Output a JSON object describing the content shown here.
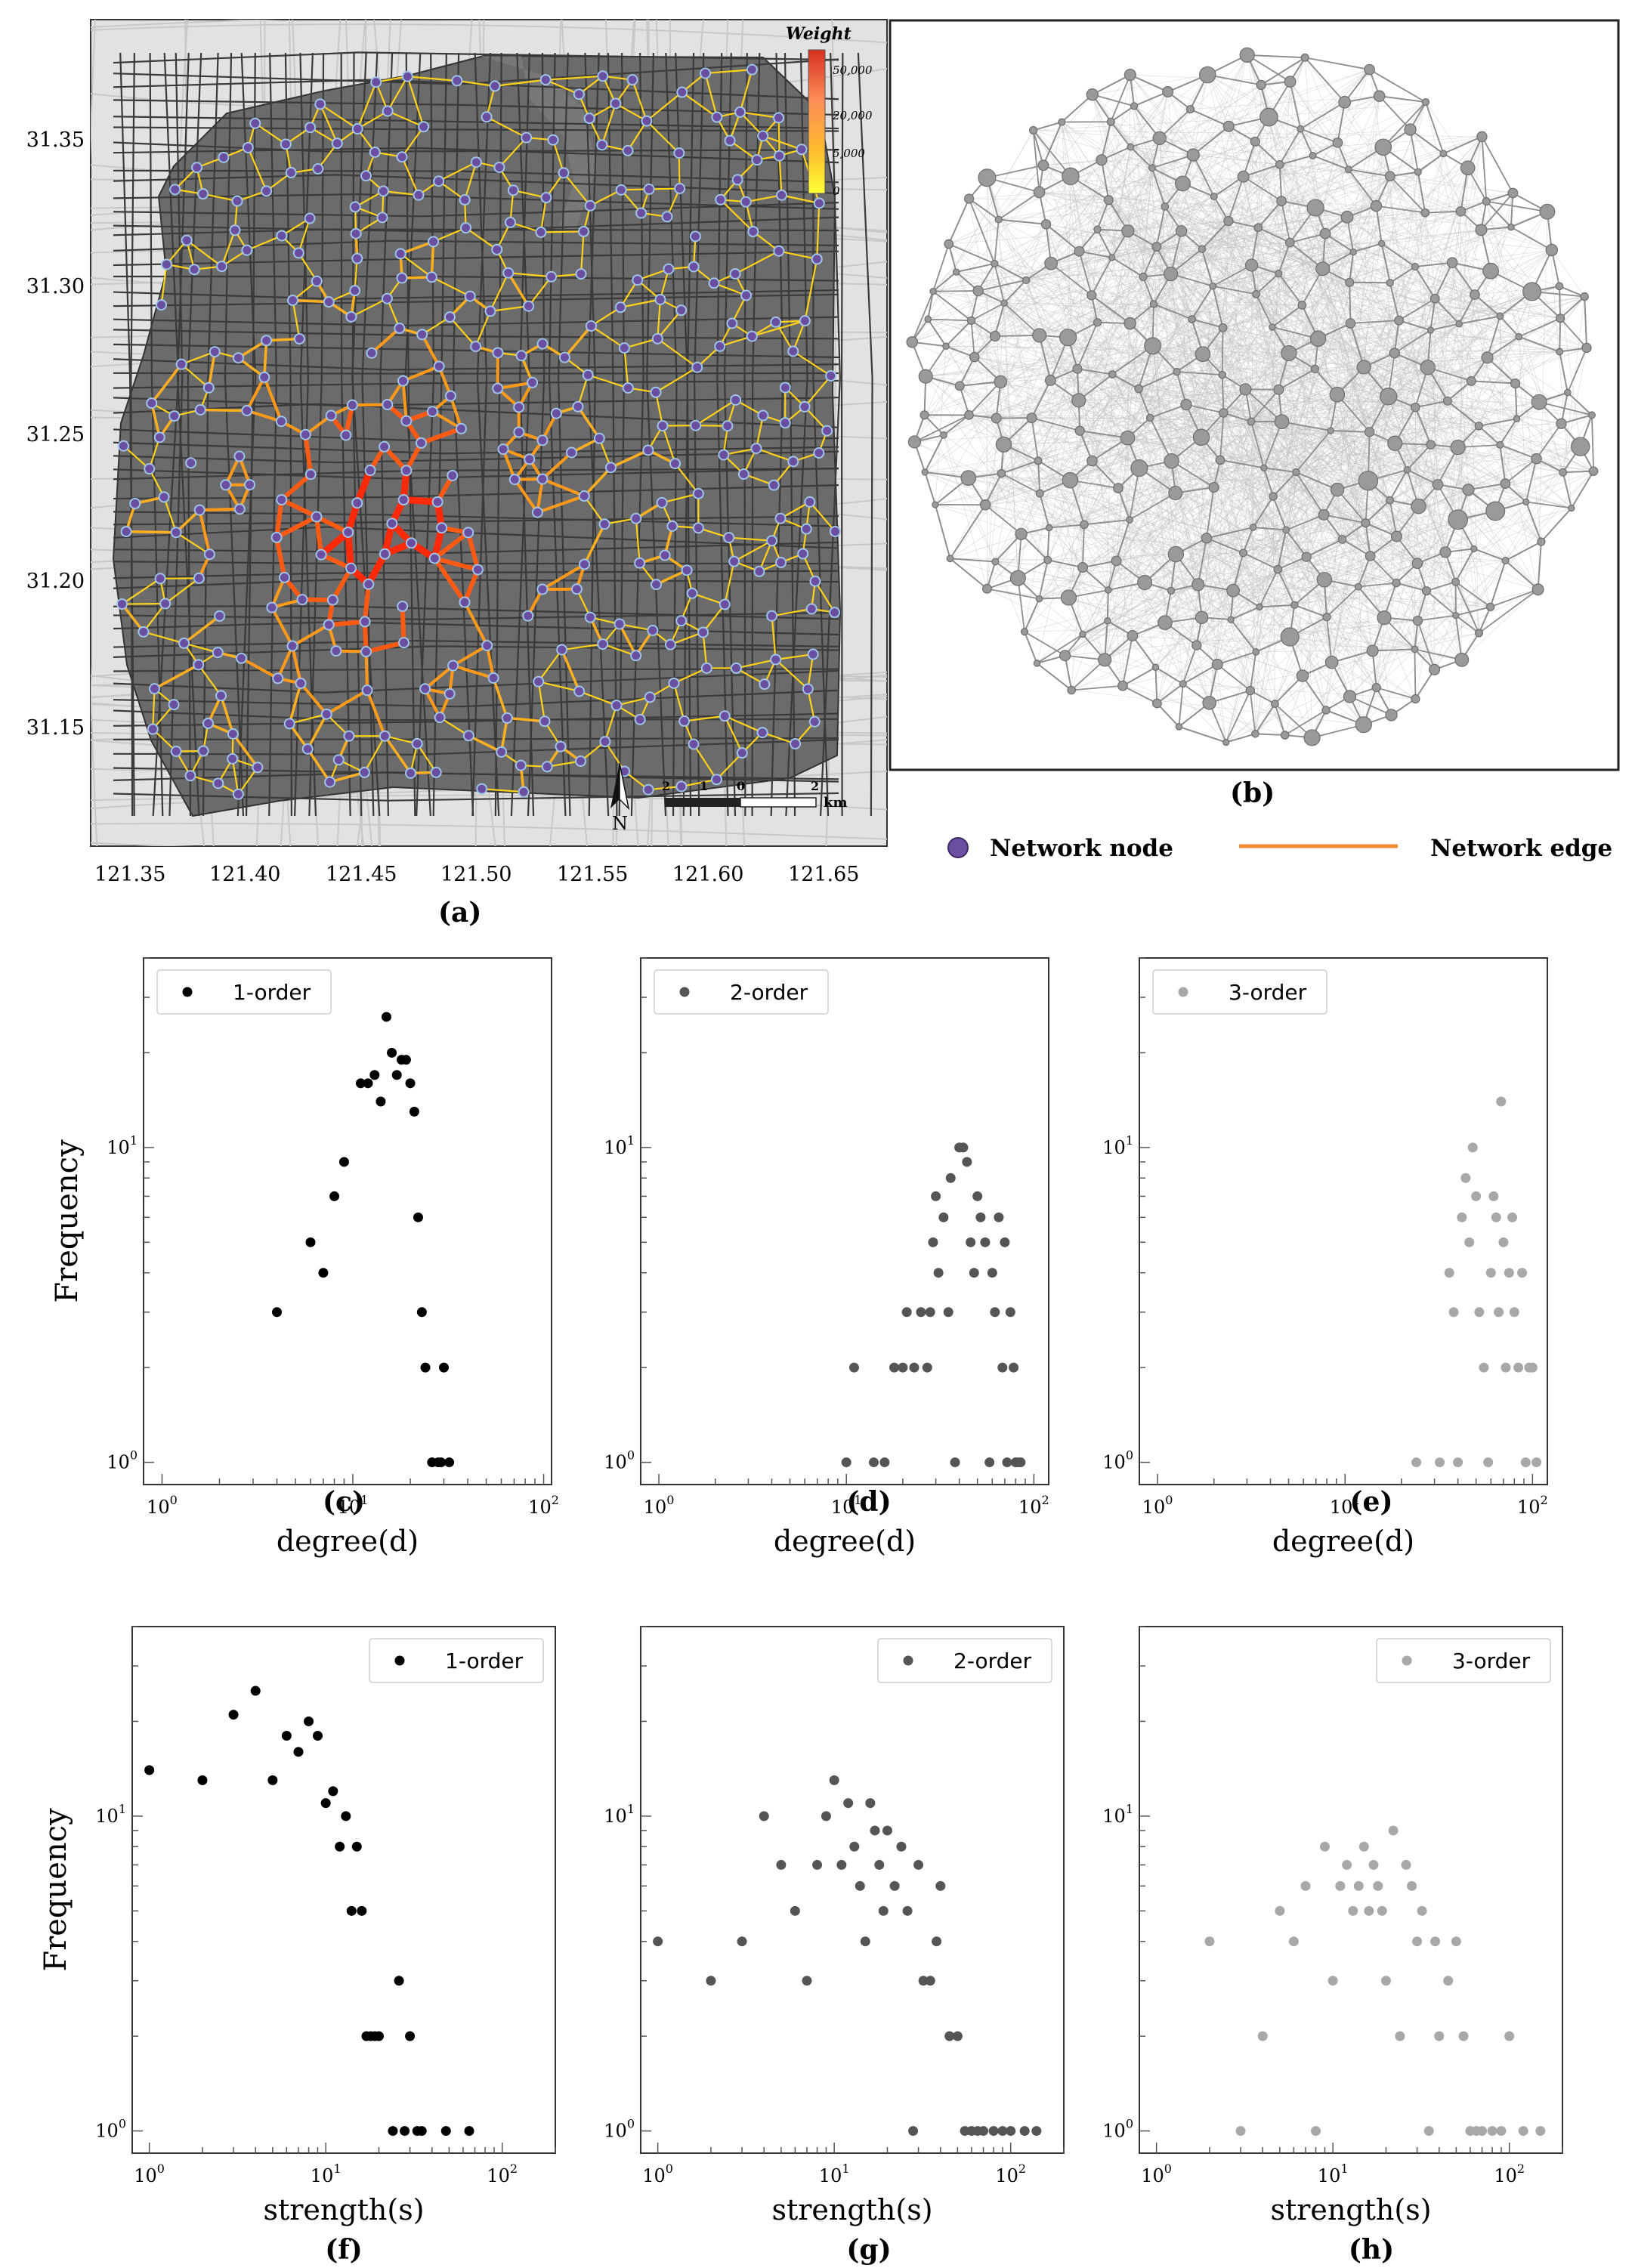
{
  "panels": {
    "a": {
      "label": "(a)",
      "x_ticks": [
        "121.35",
        "121.40",
        "121.45",
        "121.50",
        "121.55",
        "121.60",
        "121.65"
      ],
      "y_ticks": [
        "31.35",
        "31.30",
        "31.25",
        "31.20",
        "31.15"
      ],
      "colorbar": {
        "title": "Weight",
        "ticks": [
          "50,000",
          "20,000",
          "5,000",
          "0"
        ],
        "colors": [
          "#d7301f",
          "#fc8d59",
          "#fdbb2d",
          "#ffff33"
        ]
      },
      "north": "N",
      "scalebar": {
        "ticks": [
          "2",
          "1",
          "0",
          "2"
        ],
        "unit": "km"
      }
    },
    "b": {
      "label": "(b)"
    },
    "legend": {
      "node_label": "Network node",
      "edge_label": "Network edge",
      "node_color": "#6a4ea0",
      "edge_color": "#f28a30"
    }
  },
  "chart_data": [
    {
      "id": "c",
      "label": "(c)",
      "type": "scatter",
      "xscale": "log",
      "yscale": "log",
      "xlabel": "degree(d)",
      "ylabel": "Frequency",
      "legend": "1-order",
      "legend_loc": "top-left",
      "color": "#000000",
      "xlim": [
        0.8,
        110
      ],
      "ylim": [
        0.85,
        40
      ],
      "x_ticks": [
        "10^0",
        "10^1",
        "10^2"
      ],
      "y_ticks": [
        "10^0",
        "10^1"
      ],
      "x": [
        4,
        6,
        7,
        8,
        9,
        11,
        12,
        13,
        14,
        15,
        16,
        17,
        18,
        19,
        20,
        21,
        22,
        23,
        24,
        26,
        28,
        29,
        30,
        32
      ],
      "y": [
        3,
        5,
        4,
        7,
        9,
        16,
        16,
        17,
        14,
        26,
        20,
        17,
        19,
        19,
        16,
        13,
        6,
        3,
        2,
        1,
        1,
        1,
        2,
        1
      ]
    },
    {
      "id": "d",
      "label": "(d)",
      "type": "scatter",
      "xscale": "log",
      "yscale": "log",
      "xlabel": "degree(d)",
      "ylabel": "",
      "legend": "2-order",
      "legend_loc": "top-left",
      "color": "#555555",
      "xlim": [
        0.8,
        120
      ],
      "ylim": [
        0.85,
        40
      ],
      "x_ticks": [
        "10^0",
        "10^1",
        "10^2"
      ],
      "y_ticks": [
        "10^0",
        "10^1"
      ],
      "x": [
        10,
        11,
        14,
        16,
        18,
        20,
        21,
        23,
        25,
        27,
        28,
        29,
        30,
        31,
        33,
        35,
        36,
        38,
        40,
        42,
        44,
        46,
        48,
        50,
        52,
        55,
        58,
        60,
        62,
        65,
        68,
        70,
        72,
        75,
        78,
        80,
        82,
        85
      ],
      "y": [
        1,
        2,
        1,
        1,
        2,
        2,
        3,
        2,
        3,
        2,
        3,
        5,
        7,
        4,
        6,
        3,
        8,
        1,
        10,
        10,
        9,
        5,
        4,
        7,
        6,
        5,
        1,
        4,
        3,
        6,
        2,
        5,
        1,
        3,
        2,
        1,
        1,
        1
      ]
    },
    {
      "id": "e",
      "label": "(e)",
      "type": "scatter",
      "xscale": "log",
      "yscale": "log",
      "xlabel": "degree(d)",
      "ylabel": "",
      "legend": "3-order",
      "legend_loc": "top-left",
      "color": "#a8a8a8",
      "xlim": [
        0.8,
        120
      ],
      "ylim": [
        0.85,
        40
      ],
      "x_ticks": [
        "10^0",
        "10^1",
        "10^2"
      ],
      "y_ticks": [
        "10^0",
        "10^1"
      ],
      "x": [
        24,
        32,
        36,
        38,
        40,
        42,
        44,
        46,
        48,
        50,
        52,
        55,
        58,
        60,
        62,
        64,
        66,
        68,
        70,
        72,
        75,
        78,
        80,
        84,
        88,
        92,
        96,
        100,
        105
      ],
      "y": [
        1,
        1,
        4,
        3,
        1,
        6,
        8,
        5,
        10,
        7,
        3,
        2,
        1,
        4,
        7,
        6,
        3,
        14,
        5,
        2,
        4,
        6,
        3,
        2,
        4,
        1,
        2,
        2,
        1
      ]
    },
    {
      "id": "f",
      "label": "(f)",
      "type": "scatter",
      "xscale": "log",
      "yscale": "log",
      "xlabel": "strength(s)",
      "ylabel": "Frequency",
      "legend": "1-order",
      "legend_loc": "top-right",
      "color": "#000000",
      "xlim": [
        0.8,
        200
      ],
      "ylim": [
        0.85,
        40
      ],
      "x_ticks": [
        "10^0",
        "10^1",
        "10^2"
      ],
      "y_ticks": [
        "10^0",
        "10^1"
      ],
      "x": [
        1,
        2,
        3,
        4,
        5,
        6,
        7,
        8,
        9,
        10,
        11,
        12,
        13,
        14,
        15,
        16,
        17,
        18,
        19,
        20,
        24,
        26,
        28,
        30,
        33,
        35,
        48,
        65
      ],
      "y": [
        14,
        13,
        21,
        25,
        13,
        18,
        16,
        20,
        18,
        11,
        12,
        8,
        10,
        5,
        8,
        5,
        2,
        2,
        2,
        2,
        1,
        3,
        1,
        2,
        1,
        1,
        1,
        1
      ]
    },
    {
      "id": "g",
      "label": "(g)",
      "type": "scatter",
      "xscale": "log",
      "yscale": "log",
      "xlabel": "strength(s)",
      "ylabel": "",
      "legend": "2-order",
      "legend_loc": "top-right",
      "color": "#555555",
      "xlim": [
        0.8,
        200
      ],
      "ylim": [
        0.85,
        40
      ],
      "x_ticks": [
        "10^0",
        "10^1",
        "10^2"
      ],
      "y_ticks": [
        "10^0",
        "10^1"
      ],
      "x": [
        1,
        2,
        3,
        4,
        5,
        6,
        7,
        8,
        9,
        10,
        11,
        12,
        13,
        14,
        15,
        16,
        17,
        18,
        19,
        20,
        22,
        24,
        26,
        28,
        30,
        32,
        35,
        38,
        40,
        45,
        50,
        55,
        60,
        65,
        70,
        80,
        90,
        100,
        120,
        140
      ],
      "y": [
        4,
        3,
        4,
        10,
        7,
        5,
        3,
        7,
        10,
        13,
        7,
        11,
        8,
        6,
        4,
        11,
        9,
        7,
        5,
        9,
        6,
        8,
        5,
        1,
        7,
        3,
        3,
        4,
        6,
        2,
        2,
        1,
        1,
        1,
        1,
        1,
        1,
        1,
        1,
        1
      ]
    },
    {
      "id": "h",
      "label": "(h)",
      "type": "scatter",
      "xscale": "log",
      "yscale": "log",
      "xlabel": "strength(s)",
      "ylabel": "",
      "legend": "3-order",
      "legend_loc": "top-right",
      "color": "#a8a8a8",
      "xlim": [
        0.8,
        200
      ],
      "ylim": [
        0.85,
        40
      ],
      "x_ticks": [
        "10^0",
        "10^1",
        "10^2"
      ],
      "y_ticks": [
        "10^0",
        "10^1"
      ],
      "x": [
        2,
        3,
        4,
        5,
        6,
        7,
        8,
        9,
        10,
        11,
        12,
        13,
        14,
        15,
        16,
        17,
        18,
        19,
        20,
        22,
        24,
        26,
        28,
        30,
        32,
        35,
        38,
        40,
        45,
        50,
        55,
        60,
        65,
        70,
        80,
        90,
        100,
        120,
        150
      ],
      "y": [
        4,
        1,
        2,
        5,
        4,
        6,
        1,
        8,
        3,
        6,
        7,
        5,
        6,
        8,
        5,
        7,
        6,
        5,
        3,
        9,
        2,
        7,
        6,
        4,
        5,
        1,
        4,
        2,
        3,
        4,
        2,
        1,
        1,
        1,
        1,
        1,
        2,
        1,
        1
      ]
    }
  ]
}
